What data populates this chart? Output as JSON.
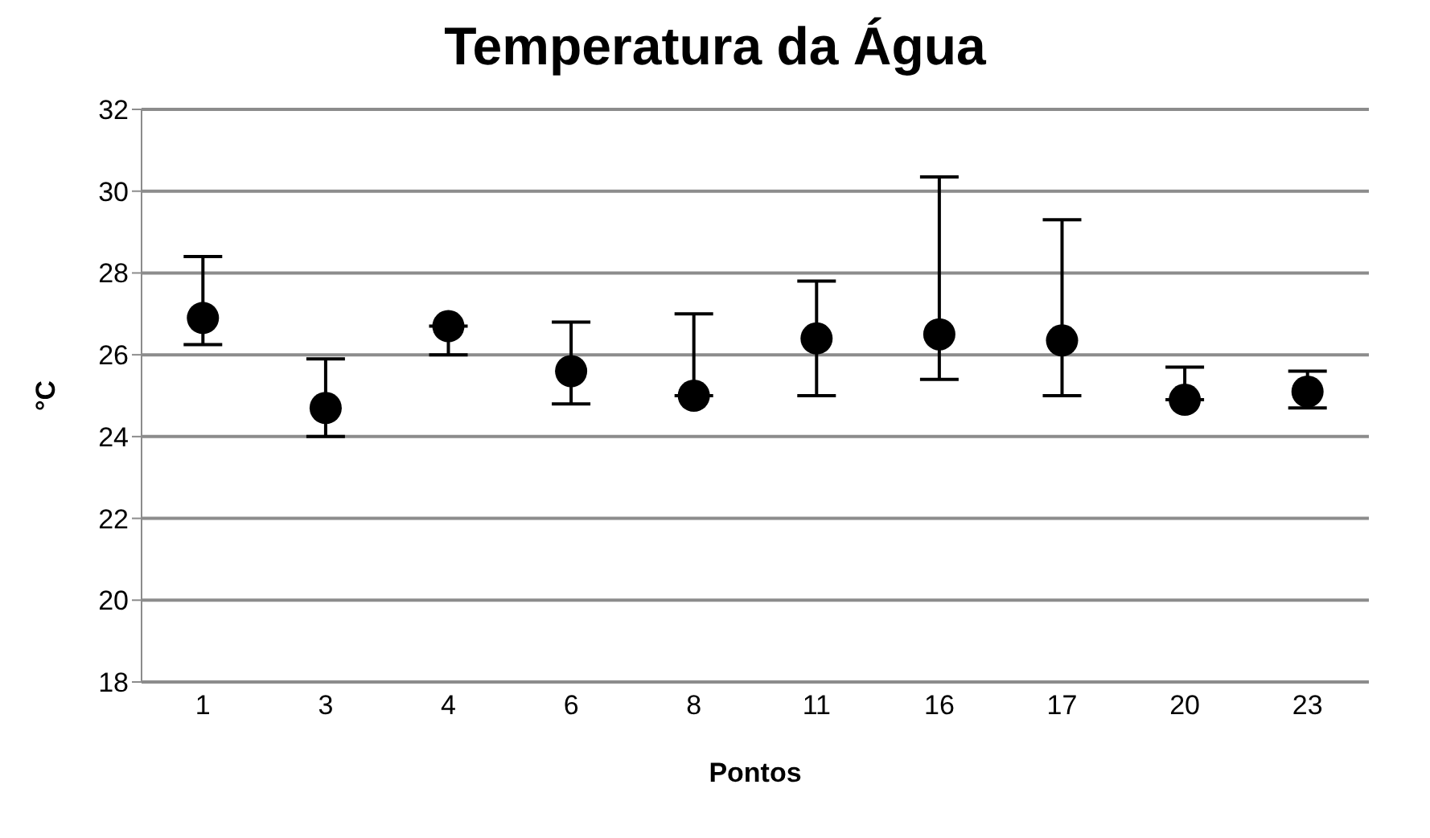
{
  "chart_data": {
    "type": "scatter",
    "title": "Temperatura da Água",
    "xlabel": "Pontos",
    "ylabel": "°C",
    "categories": [
      "1",
      "3",
      "4",
      "6",
      "8",
      "11",
      "16",
      "17",
      "20",
      "23"
    ],
    "series": [
      {
        "color": "#000000",
        "values": [
          26.9,
          24.7,
          26.7,
          25.6,
          25.0,
          26.4,
          26.5,
          26.35,
          24.9,
          25.1
        ],
        "errors": [
          [
            26.25,
            28.4
          ],
          [
            24.0,
            25.9
          ],
          [
            26.0,
            26.7
          ],
          [
            24.8,
            26.8
          ],
          [
            25.0,
            27.0
          ],
          [
            25.0,
            27.8
          ],
          [
            25.4,
            30.35
          ],
          [
            25.0,
            29.3
          ],
          [
            24.9,
            25.7
          ],
          [
            24.7,
            25.6
          ]
        ]
      }
    ],
    "ylim": [
      18,
      32
    ],
    "yticks": [
      18,
      20,
      22,
      24,
      26,
      28,
      30,
      32
    ],
    "grid": "y",
    "marker": "circle",
    "legend": false
  }
}
